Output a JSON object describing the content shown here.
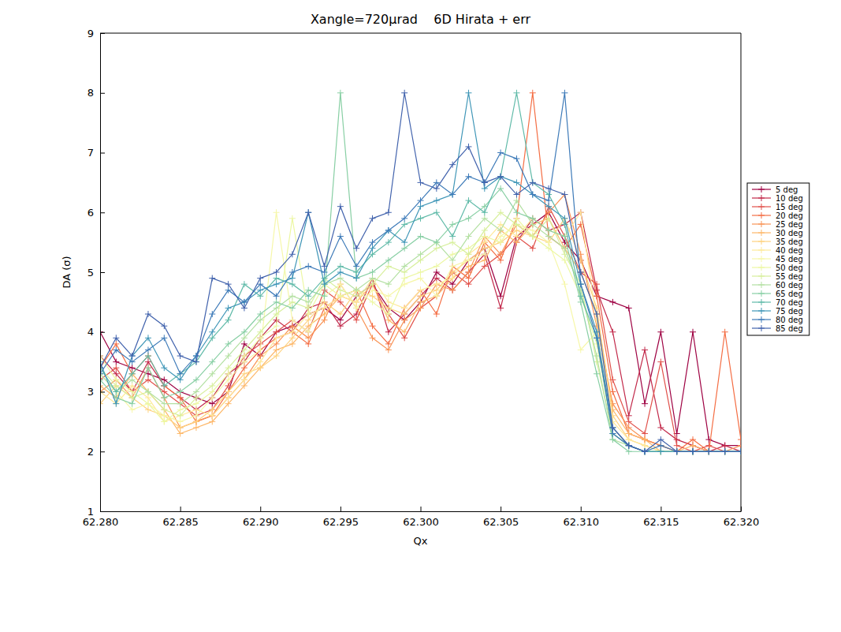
{
  "chart_data": {
    "type": "line",
    "title": "Xangle=720μrad    6D Hirata + err",
    "x_label": "Qx",
    "y_label": "DA (σ)",
    "marker": "plus",
    "line_style": "solid",
    "legend": "right",
    "grid": false,
    "xlim": [
      62.28,
      62.32
    ],
    "xticks": [
      {
        "value": 62.28,
        "label": "62.280"
      },
      {
        "value": 62.285,
        "label": "62.285"
      },
      {
        "value": 62.29,
        "label": "62.290"
      },
      {
        "value": 62.295,
        "label": "62.295"
      },
      {
        "value": 62.3,
        "label": "62.300"
      },
      {
        "value": 62.305,
        "label": "62.305"
      },
      {
        "value": 62.31,
        "label": "62.310"
      },
      {
        "value": 62.315,
        "label": "62.315"
      },
      {
        "value": 62.32,
        "label": "62.320"
      }
    ],
    "ylim": [
      1,
      9
    ],
    "yticks": [
      1,
      2,
      3,
      4,
      5,
      6,
      7,
      8,
      9
    ],
    "x": [
      62.28,
      62.281,
      62.282,
      62.283,
      62.284,
      62.285,
      62.286,
      62.287,
      62.288,
      62.289,
      62.29,
      62.291,
      62.292,
      62.293,
      62.294,
      62.295,
      62.296,
      62.297,
      62.298,
      62.299,
      62.3,
      62.301,
      62.302,
      62.303,
      62.304,
      62.305,
      62.306,
      62.307,
      62.308,
      62.309,
      62.31,
      62.311,
      62.312,
      62.313,
      62.314,
      62.315,
      62.316,
      62.317,
      62.318,
      62.319,
      62.32
    ],
    "series": [
      {
        "name": "5 deg",
        "color": "#9e0142",
        "values": [
          4.0,
          3.5,
          3.4,
          3.3,
          3.2,
          3.0,
          2.9,
          2.8,
          3.0,
          3.8,
          3.6,
          4.0,
          4.1,
          4.3,
          4.4,
          4.2,
          4.6,
          4.8,
          4.4,
          4.2,
          4.5,
          5.0,
          4.8,
          5.2,
          5.4,
          4.6,
          5.6,
          5.8,
          6.0,
          5.5,
          5.2,
          4.6,
          4.5,
          4.4,
          2.8,
          4.0,
          2.3,
          4.0,
          2.2,
          2.1,
          2.1
        ]
      },
      {
        "name": "10 deg",
        "color": "#c2294a",
        "values": [
          3.6,
          3.3,
          3.0,
          3.5,
          3.1,
          2.9,
          2.7,
          2.9,
          3.3,
          3.5,
          3.9,
          4.2,
          4.0,
          4.4,
          4.5,
          4.1,
          4.3,
          4.9,
          4.0,
          4.3,
          4.6,
          4.9,
          4.7,
          5.0,
          5.3,
          4.4,
          5.5,
          5.9,
          5.7,
          5.8,
          6.0,
          4.7,
          4.0,
          2.6,
          3.7,
          2.4,
          2.2,
          2.1,
          2.0,
          2.1,
          2.0
        ]
      },
      {
        "name": "15 deg",
        "color": "#e1504a",
        "values": [
          3.2,
          3.4,
          3.0,
          3.2,
          3.0,
          2.8,
          2.6,
          2.7,
          3.1,
          3.6,
          3.8,
          4.0,
          4.2,
          4.0,
          4.7,
          4.5,
          4.2,
          4.8,
          4.3,
          3.9,
          4.4,
          4.6,
          5.0,
          4.8,
          5.1,
          5.3,
          5.6,
          5.4,
          6.1,
          5.6,
          5.0,
          4.8,
          3.2,
          2.5,
          2.3,
          3.5,
          2.1,
          2.0,
          2.1,
          2.0,
          2.0
        ]
      },
      {
        "name": "20 deg",
        "color": "#f46d43",
        "values": [
          3.4,
          3.8,
          3.3,
          3.6,
          3.1,
          2.9,
          2.5,
          2.6,
          3.0,
          3.4,
          3.7,
          3.9,
          4.0,
          3.8,
          4.4,
          4.6,
          4.7,
          4.1,
          3.8,
          4.4,
          4.7,
          4.3,
          5.1,
          4.9,
          5.5,
          5.2,
          5.9,
          8.0,
          5.6,
          5.4,
          5.8,
          4.6,
          3.0,
          2.3,
          2.2,
          2.1,
          2.0,
          2.2,
          2.0,
          4.0,
          2.2
        ]
      },
      {
        "name": "25 deg",
        "color": "#f99355",
        "values": [
          3.0,
          3.2,
          2.9,
          3.4,
          2.9,
          2.4,
          2.5,
          2.6,
          2.9,
          3.2,
          3.6,
          3.8,
          4.1,
          3.9,
          4.2,
          4.8,
          4.4,
          3.9,
          3.7,
          4.2,
          4.4,
          4.8,
          4.7,
          5.0,
          5.6,
          5.3,
          5.8,
          5.6,
          6.0,
          6.3,
          5.3,
          4.1,
          2.8,
          2.4,
          2.2,
          2.1,
          2.0,
          2.0,
          2.0,
          2.0,
          2.1
        ]
      },
      {
        "name": "30 deg",
        "color": "#fdb768",
        "values": [
          3.1,
          2.9,
          3.3,
          3.0,
          2.7,
          2.3,
          2.4,
          2.5,
          2.8,
          3.1,
          3.4,
          3.7,
          3.8,
          4.1,
          4.3,
          4.6,
          4.5,
          4.8,
          4.2,
          4.0,
          4.5,
          4.6,
          4.9,
          5.1,
          5.2,
          5.7,
          5.5,
          5.8,
          5.9,
          5.4,
          5.0,
          4.3,
          2.7,
          2.3,
          2.2,
          2.0,
          2.0,
          2.1,
          2.0,
          2.0,
          2.0
        ]
      },
      {
        "name": "35 deg",
        "color": "#fed27f",
        "values": [
          2.8,
          3.1,
          2.9,
          2.7,
          2.6,
          2.4,
          2.5,
          2.7,
          3.0,
          3.3,
          3.4,
          3.6,
          3.9,
          4.2,
          4.5,
          4.3,
          4.7,
          4.6,
          4.4,
          4.3,
          4.6,
          4.7,
          5.0,
          5.2,
          5.4,
          5.5,
          5.7,
          5.6,
          5.5,
          5.9,
          5.2,
          4.4,
          2.6,
          2.2,
          2.1,
          2.0,
          2.0,
          2.0,
          2.0,
          2.0,
          2.0
        ]
      },
      {
        "name": "40 deg",
        "color": "#fee999",
        "values": [
          3.0,
          2.8,
          3.1,
          2.9,
          2.5,
          2.6,
          2.7,
          2.6,
          2.9,
          3.2,
          3.5,
          3.9,
          4.0,
          4.3,
          4.4,
          4.6,
          4.5,
          4.9,
          4.5,
          4.4,
          4.7,
          4.8,
          4.9,
          5.3,
          5.5,
          5.8,
          5.6,
          5.9,
          5.7,
          5.6,
          6.0,
          4.2,
          2.5,
          2.2,
          2.1,
          2.0,
          2.0,
          2.0,
          2.0,
          2.0,
          2.0
        ]
      },
      {
        "name": "45 deg",
        "color": "#f6f7a8",
        "values": [
          3.3,
          3.0,
          2.7,
          2.8,
          2.6,
          2.5,
          2.6,
          2.9,
          3.2,
          3.5,
          3.7,
          6.0,
          4.2,
          4.0,
          4.6,
          4.8,
          4.4,
          4.7,
          4.6,
          4.8,
          4.9,
          4.6,
          5.1,
          5.2,
          5.3,
          5.6,
          5.8,
          5.7,
          5.5,
          4.8,
          3.7,
          4.0,
          2.4,
          2.1,
          2.0,
          2.0,
          2.0,
          2.0,
          2.0,
          2.0,
          2.0
        ]
      },
      {
        "name": "50 deg",
        "color": "#ecf7a2",
        "values": [
          3.6,
          3.2,
          3.0,
          2.8,
          2.5,
          2.7,
          2.8,
          3.0,
          3.3,
          3.6,
          3.9,
          4.1,
          5.9,
          4.3,
          4.8,
          4.6,
          4.7,
          4.5,
          4.3,
          4.9,
          5.0,
          5.1,
          5.3,
          5.4,
          5.6,
          5.5,
          5.9,
          5.6,
          5.4,
          5.2,
          4.6,
          3.8,
          2.3,
          2.1,
          2.0,
          2.0,
          2.0,
          2.0,
          2.0,
          2.0,
          2.0
        ]
      },
      {
        "name": "55 deg",
        "color": "#d7ef9b",
        "values": [
          3.4,
          3.1,
          2.9,
          3.0,
          2.7,
          2.6,
          2.9,
          3.1,
          3.4,
          3.7,
          4.0,
          4.3,
          4.5,
          4.4,
          4.9,
          4.7,
          4.6,
          4.8,
          5.1,
          5.0,
          5.2,
          5.4,
          5.5,
          5.3,
          5.7,
          6.0,
          5.8,
          5.6,
          5.9,
          5.3,
          4.8,
          3.5,
          2.3,
          2.1,
          2.0,
          2.0,
          2.0,
          2.0,
          2.0,
          2.0,
          2.0
        ]
      },
      {
        "name": "60 deg",
        "color": "#b3e0a2",
        "values": [
          3.3,
          3.0,
          3.2,
          3.0,
          2.8,
          2.8,
          3.0,
          3.3,
          3.6,
          3.9,
          4.2,
          4.4,
          4.6,
          4.5,
          4.8,
          4.9,
          4.7,
          4.9,
          4.8,
          5.1,
          5.3,
          5.5,
          5.2,
          5.6,
          5.9,
          5.7,
          6.2,
          5.8,
          5.6,
          5.4,
          4.7,
          3.6,
          2.2,
          2.1,
          2.0,
          2.0,
          2.0,
          2.0,
          2.0,
          2.0,
          2.0
        ]
      },
      {
        "name": "65 deg",
        "color": "#88cfa4",
        "values": [
          3.2,
          2.9,
          2.8,
          3.4,
          2.9,
          3.0,
          3.2,
          3.5,
          3.8,
          4.0,
          4.3,
          4.5,
          4.4,
          4.7,
          4.6,
          8.0,
          4.9,
          5.0,
          5.2,
          5.4,
          5.6,
          5.5,
          5.8,
          5.9,
          6.1,
          6.4,
          6.0,
          5.9,
          5.7,
          5.6,
          4.5,
          3.3,
          2.2,
          2.0,
          2.0,
          2.0,
          2.0,
          2.0,
          2.0,
          2.0,
          2.0
        ]
      },
      {
        "name": "70 deg",
        "color": "#5fbaa8",
        "values": [
          3.4,
          3.0,
          3.3,
          3.6,
          3.1,
          3.3,
          3.5,
          3.9,
          4.2,
          4.8,
          4.6,
          4.9,
          4.8,
          4.6,
          4.9,
          5.1,
          5.0,
          5.3,
          5.5,
          5.8,
          5.9,
          6.0,
          5.6,
          6.2,
          6.0,
          6.6,
          8.0,
          6.5,
          6.3,
          5.8,
          4.6,
          3.9,
          2.3,
          2.1,
          2.0,
          2.0,
          2.0,
          2.0,
          2.0,
          2.0,
          2.0
        ]
      },
      {
        "name": "75 deg",
        "color": "#3f96b7",
        "values": [
          3.5,
          2.8,
          3.6,
          3.9,
          3.4,
          3.2,
          3.6,
          4.0,
          4.4,
          4.5,
          4.7,
          4.8,
          4.9,
          6.0,
          4.8,
          5.0,
          4.9,
          5.4,
          5.7,
          5.5,
          6.1,
          6.2,
          6.3,
          8.0,
          6.4,
          6.6,
          6.5,
          6.3,
          6.1,
          5.9,
          4.8,
          4.0,
          2.4,
          2.1,
          2.0,
          2.0,
          2.0,
          2.0,
          2.0,
          2.0,
          2.0
        ]
      },
      {
        "name": "80 deg",
        "color": "#3d7ab8",
        "values": [
          3.3,
          3.7,
          3.5,
          3.7,
          3.9,
          3.3,
          3.6,
          4.3,
          4.7,
          4.5,
          4.8,
          4.6,
          5.0,
          5.1,
          5.0,
          5.6,
          5.1,
          5.5,
          5.7,
          5.9,
          6.2,
          6.5,
          6.3,
          6.6,
          6.5,
          7.0,
          6.9,
          6.3,
          6.2,
          8.0,
          4.8,
          3.9,
          2.3,
          2.1,
          2.0,
          2.1,
          2.0,
          2.0,
          2.0,
          2.0,
          2.0
        ]
      },
      {
        "name": "85 deg",
        "color": "#4263ad",
        "values": [
          3.4,
          3.9,
          3.6,
          4.3,
          4.1,
          3.6,
          3.5,
          4.9,
          4.8,
          4.4,
          4.9,
          5.0,
          5.3,
          6.0,
          5.1,
          6.1,
          5.4,
          5.9,
          6.0,
          8.0,
          6.5,
          6.4,
          6.8,
          7.1,
          6.5,
          6.6,
          6.3,
          6.5,
          6.4,
          6.3,
          5.0,
          4.3,
          2.4,
          2.1,
          2.0,
          2.2,
          2.0,
          2.0,
          2.0,
          2.0,
          2.0
        ]
      }
    ]
  }
}
